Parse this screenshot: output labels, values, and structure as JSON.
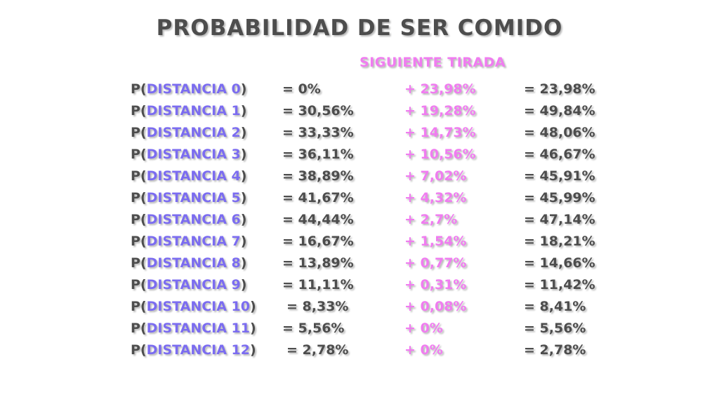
{
  "title": "PROBABILIDAD DE SER COMIDO",
  "subtitle": "SIGUIENTE TIRADA",
  "colors": {
    "text": "#4d4d4d",
    "distance": "#7b6cf0",
    "next_roll": "#f07cf0",
    "background": "#ffffff"
  },
  "rows": [
    {
      "prefix": "P(",
      "distance": "DISTANCIA 0",
      "suffix": ")",
      "base": "= 0%",
      "add": "+ 23,98%",
      "total": "= 23,98%"
    },
    {
      "prefix": "P(",
      "distance": "DISTANCIA 1",
      "suffix": ")",
      "base": "= 30,56%",
      "add": "+ 19,28%",
      "total": "= 49,84%"
    },
    {
      "prefix": "P(",
      "distance": "DISTANCIA 2",
      "suffix": ")",
      "base": "= 33,33%",
      "add": "+ 14,73%",
      "total": "= 48,06%"
    },
    {
      "prefix": "P(",
      "distance": "DISTANCIA 3",
      "suffix": ")",
      "base": "= 36,11%",
      "add": "+ 10,56%",
      "total": "= 46,67%"
    },
    {
      "prefix": "P(",
      "distance": "DISTANCIA 4",
      "suffix": ")",
      "base": "= 38,89%",
      "add": "+ 7,02%",
      "total": "= 45,91%"
    },
    {
      "prefix": "P(",
      "distance": "DISTANCIA 5",
      "suffix": ")",
      "base": "= 41,67%",
      "add": "+ 4,32%",
      "total": "= 45,99%"
    },
    {
      "prefix": "P(",
      "distance": "DISTANCIA 6",
      "suffix": ")",
      "base": "= 44,44%",
      "add": "+ 2,7%",
      "total": "= 47,14%"
    },
    {
      "prefix": "P(",
      "distance": "DISTANCIA 7",
      "suffix": ")",
      "base": "= 16,67%",
      "add": "+ 1,54%",
      "total": "= 18,21%"
    },
    {
      "prefix": "P(",
      "distance": "DISTANCIA 8",
      "suffix": ")",
      "base": "= 13,89%",
      "add": "+ 0,77%",
      "total": "= 14,66%"
    },
    {
      "prefix": "P(",
      "distance": "DISTANCIA 9",
      "suffix": ")",
      "base": "= 11,11%",
      "add": "+ 0,31%",
      "total": "= 11,42%"
    },
    {
      "prefix": "P(",
      "distance": "DISTANCIA 10",
      "suffix": ")",
      "base": "= 8,33%",
      "add": "+ 0,08%",
      "total": "= 8,41%"
    },
    {
      "prefix": "P(",
      "distance": "DISTANCIA 11",
      "suffix": ")",
      "base": "= 5,56%",
      "add": "+ 0%",
      "total": "= 5,56%"
    },
    {
      "prefix": "P(",
      "distance": "DISTANCIA 12",
      "suffix": ")",
      "base": "= 2,78%",
      "add": "+ 0%",
      "total": "= 2,78%"
    }
  ]
}
